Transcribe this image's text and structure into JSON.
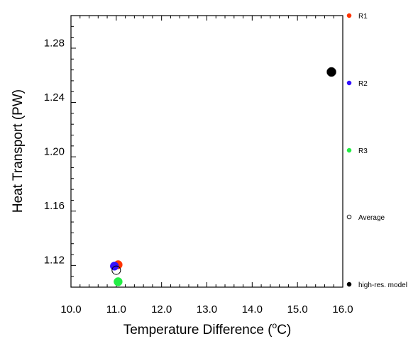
{
  "chart_data": {
    "type": "scatter",
    "xlabel": "Temperature Difference (",
    "xlabel_sup": "o",
    "xlabel_tail": "C)",
    "ylabel": "Heat Transport (PW)",
    "xlim": [
      10.0,
      16.0
    ],
    "ylim": [
      1.1,
      1.3
    ],
    "xticks": [
      "10.0",
      "11.0",
      "12.0",
      "13.0",
      "14.0",
      "15.0",
      "16.0"
    ],
    "yticks": [
      "1.12",
      "1.16",
      "1.20",
      "1.24",
      "1.28"
    ],
    "grid": false,
    "legend_position": "right",
    "series": [
      {
        "name": "R1",
        "color": "#ff3300",
        "filled": true,
        "x": 11.04,
        "y": 1.1165
      },
      {
        "name": "R2",
        "color": "#3311ff",
        "filled": true,
        "x": 10.96,
        "y": 1.1155
      },
      {
        "name": "R3",
        "color": "#22ee44",
        "filled": true,
        "x": 11.04,
        "y": 1.104
      },
      {
        "name": "Average",
        "color": "#000000",
        "filled": false,
        "x": 11.0,
        "y": 1.1125
      },
      {
        "name": "high-res. model",
        "color": "#000000",
        "filled": true,
        "x": 15.75,
        "y": 1.2585
      }
    ]
  }
}
